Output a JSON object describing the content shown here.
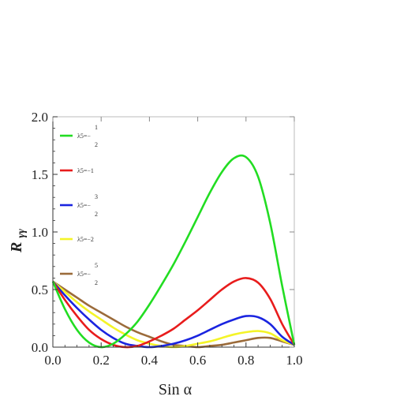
{
  "chart_data": {
    "type": "line",
    "xlabel": "Sin α",
    "ylabel": "R γγ",
    "ylabel_main": "R",
    "ylabel_sub": "γγ",
    "xlim": [
      0,
      1
    ],
    "ylim": [
      0,
      2
    ],
    "x_ticks": [
      "0.0",
      "0.2",
      "0.4",
      "0.6",
      "0.8",
      "1.0"
    ],
    "y_ticks": [
      "0.0",
      "0.5",
      "1.0",
      "1.5",
      "2.0"
    ],
    "grid": false,
    "legend_position": "top-left",
    "x": [
      0.0,
      0.05,
      0.1,
      0.15,
      0.2,
      0.25,
      0.3,
      0.35,
      0.4,
      0.45,
      0.5,
      0.55,
      0.6,
      0.65,
      0.7,
      0.75,
      0.8,
      0.85,
      0.9,
      0.95,
      1.0
    ],
    "series": [
      {
        "name": "λ5=-1/2",
        "legend_main": "λ5=−",
        "legend_num": "1",
        "legend_den": "2",
        "color": "#22dd22",
        "values": [
          0.57,
          0.33,
          0.15,
          0.04,
          0.0,
          0.03,
          0.11,
          0.22,
          0.37,
          0.54,
          0.72,
          0.92,
          1.13,
          1.34,
          1.52,
          1.64,
          1.65,
          1.48,
          1.08,
          0.53,
          0.02
        ]
      },
      {
        "name": "λ5=-1",
        "legend_main": "λ5=−1",
        "legend_num": "",
        "legend_den": "",
        "color": "#e81c1c",
        "values": [
          0.57,
          0.41,
          0.27,
          0.15,
          0.07,
          0.02,
          0.0,
          0.01,
          0.05,
          0.1,
          0.16,
          0.24,
          0.32,
          0.41,
          0.5,
          0.57,
          0.6,
          0.56,
          0.42,
          0.2,
          0.02
        ]
      },
      {
        "name": "λ5=-3/2",
        "legend_main": "λ5=−",
        "legend_num": "3",
        "legend_den": "2",
        "color": "#1a24e0",
        "values": [
          0.57,
          0.45,
          0.34,
          0.24,
          0.15,
          0.08,
          0.03,
          0.01,
          0.0,
          0.01,
          0.03,
          0.06,
          0.1,
          0.15,
          0.2,
          0.24,
          0.27,
          0.26,
          0.2,
          0.09,
          0.02
        ]
      },
      {
        "name": "λ5=-2",
        "legend_main": "λ5=−2",
        "legend_num": "",
        "legend_den": "",
        "color": "#f4f428",
        "values": [
          0.57,
          0.48,
          0.39,
          0.31,
          0.24,
          0.17,
          0.11,
          0.06,
          0.03,
          0.01,
          0.0,
          0.01,
          0.03,
          0.05,
          0.08,
          0.11,
          0.13,
          0.14,
          0.12,
          0.06,
          0.02
        ]
      },
      {
        "name": "λ5=-5/2",
        "legend_main": "λ5=−",
        "legend_num": "5",
        "legend_den": "2",
        "color": "#9b6b3a",
        "values": [
          0.57,
          0.5,
          0.43,
          0.36,
          0.3,
          0.24,
          0.18,
          0.13,
          0.09,
          0.05,
          0.02,
          0.01,
          0.0,
          0.01,
          0.02,
          0.04,
          0.06,
          0.08,
          0.08,
          0.05,
          0.02
        ]
      }
    ]
  }
}
